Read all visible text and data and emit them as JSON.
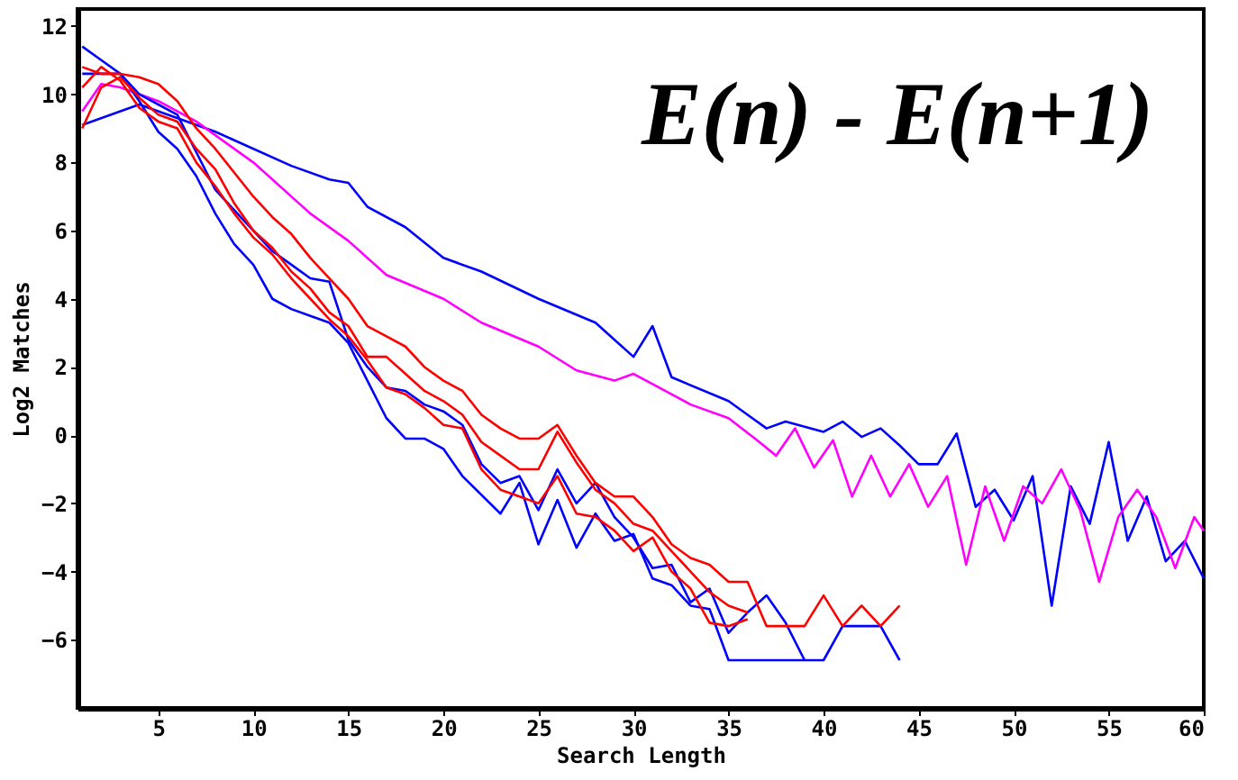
{
  "chart_data": {
    "type": "line",
    "xlabel": "Search Length",
    "ylabel": "Log2 Matches",
    "annotations": [
      "E(n) - E(n+1)"
    ],
    "xlim": [
      0.75,
      60
    ],
    "ylim": [
      -8,
      12.5
    ],
    "xticks": [
      5,
      10,
      15,
      20,
      25,
      30,
      35,
      40,
      45,
      50,
      55,
      60
    ],
    "yticks": [
      -6,
      -4,
      -2,
      0,
      2,
      4,
      6,
      8,
      10,
      12
    ],
    "grid": false,
    "legend": false,
    "marker": "none",
    "line_style": "solid",
    "series": [
      {
        "color": "#0000ff",
        "x": [
          1,
          4,
          8,
          12,
          14,
          15,
          16,
          18,
          20,
          22,
          25,
          28,
          29,
          30,
          31,
          32,
          35,
          36,
          37,
          38,
          40,
          41,
          42,
          43,
          44,
          45,
          46,
          47,
          48,
          49,
          50,
          51,
          52,
          53,
          54,
          55,
          56,
          57,
          58,
          59,
          60
        ],
        "values": [
          9.1,
          9.7,
          8.9,
          7.9,
          7.5,
          7.4,
          6.7,
          6.1,
          5.2,
          4.8,
          4.0,
          3.3,
          2.8,
          2.3,
          3.2,
          1.7,
          1.0,
          0.6,
          0.2,
          0.4,
          0.1,
          0.4,
          -0.05,
          0.2,
          -0.3,
          -0.85,
          -0.85,
          0.05,
          -2.1,
          -1.6,
          -2.5,
          -1.2,
          -5.0,
          -1.5,
          -2.6,
          -0.2,
          -3.1,
          -1.8,
          -3.7,
          -3.1,
          -4.2
        ]
      },
      {
        "color": "#ff00ff",
        "x": [
          1,
          2,
          3,
          5,
          7,
          10,
          13,
          15,
          17,
          20,
          22,
          25,
          27,
          29,
          30,
          31,
          33,
          35,
          36.5,
          37.5,
          38.5,
          39.5,
          40.5,
          41.5,
          42.5,
          43.5,
          44.5,
          45.5,
          46.5,
          47.5,
          48.5,
          49.5,
          50.5,
          51.5,
          52.5,
          53.5,
          54.5,
          55.5,
          56.5,
          57.5,
          58.5,
          59.5,
          60
        ],
        "values": [
          9.5,
          10.3,
          10.2,
          9.8,
          9.2,
          8.0,
          6.5,
          5.7,
          4.7,
          4.0,
          3.3,
          2.6,
          1.9,
          1.6,
          1.8,
          1.5,
          0.9,
          0.5,
          -0.15,
          -0.6,
          0.2,
          -0.95,
          -0.15,
          -1.8,
          -0.6,
          -1.8,
          -0.85,
          -2.1,
          -1.2,
          -3.8,
          -1.5,
          -3.1,
          -1.5,
          -2.0,
          -1.0,
          -2.2,
          -4.3,
          -2.4,
          -1.6,
          -2.4,
          -3.9,
          -2.4,
          -2.8
        ]
      },
      {
        "color": "#0000ff",
        "x": [
          1,
          2,
          3,
          4,
          5,
          6,
          7,
          8,
          9,
          10,
          11,
          12,
          13,
          14,
          15,
          16,
          17,
          18,
          19,
          20,
          21,
          23,
          24,
          25,
          26,
          27,
          28,
          29,
          30,
          31,
          32,
          33,
          34,
          35,
          36,
          37,
          38,
          39,
          40,
          41,
          42,
          43,
          44
        ],
        "values": [
          11.4,
          11.0,
          10.6,
          9.8,
          8.9,
          8.4,
          7.6,
          6.5,
          5.6,
          5.0,
          4.0,
          3.7,
          3.5,
          3.3,
          2.7,
          1.6,
          0.5,
          -0.1,
          -0.1,
          -0.4,
          -1.2,
          -2.3,
          -1.4,
          -3.2,
          -1.9,
          -3.3,
          -2.3,
          -3.1,
          -2.9,
          -4.2,
          -4.4,
          -5.0,
          -5.1,
          -6.6,
          -6.6,
          -6.6,
          -6.6,
          -6.6,
          -6.6,
          -5.6,
          -5.6,
          -5.6,
          -6.6
        ]
      },
      {
        "color": "#0000ff",
        "x": [
          1,
          2,
          3,
          4,
          5,
          6,
          7,
          8,
          9,
          10,
          11,
          12,
          13,
          14,
          15,
          16,
          17,
          18,
          19,
          20,
          21,
          22,
          23,
          24,
          25,
          26,
          27,
          28,
          29,
          30,
          31,
          32,
          33,
          34,
          35,
          36,
          37,
          38,
          39
        ],
        "values": [
          10.6,
          10.6,
          10.6,
          10.0,
          9.7,
          9.4,
          8.3,
          7.2,
          6.6,
          6.0,
          5.4,
          5.0,
          4.6,
          4.5,
          2.8,
          2.0,
          1.4,
          1.3,
          0.9,
          0.7,
          0.3,
          -0.85,
          -1.4,
          -1.2,
          -2.2,
          -1.0,
          -2.0,
          -1.4,
          -2.4,
          -3.0,
          -3.9,
          -3.8,
          -4.9,
          -4.5,
          -5.8,
          -5.2,
          -4.7,
          -5.5,
          -6.6
        ]
      },
      {
        "color": "#ff0000",
        "x": [
          1,
          2,
          3,
          4,
          5,
          6,
          7,
          8,
          9,
          10,
          11,
          12,
          13,
          14,
          15,
          16,
          17,
          18,
          19,
          20,
          21,
          22,
          23,
          24,
          25,
          26,
          27,
          28,
          29,
          30,
          31,
          32,
          33,
          34,
          35,
          36,
          37,
          38,
          39,
          40,
          41,
          42,
          43,
          44
        ],
        "values": [
          10.8,
          10.6,
          10.6,
          10.5,
          10.3,
          9.8,
          9.0,
          8.4,
          7.7,
          7.0,
          6.4,
          5.9,
          5.2,
          4.6,
          4.0,
          3.2,
          2.9,
          2.6,
          2.0,
          1.6,
          1.3,
          0.6,
          0.2,
          -0.1,
          -0.1,
          0.3,
          -0.6,
          -1.4,
          -1.8,
          -1.8,
          -2.4,
          -3.2,
          -3.6,
          -3.8,
          -4.3,
          -4.3,
          -5.6,
          -5.6,
          -5.6,
          -4.7,
          -5.6,
          -5.0,
          -5.6,
          -5.0
        ]
      },
      {
        "color": "#ff0000",
        "x": [
          1,
          2,
          3,
          4,
          5,
          6,
          7,
          8,
          9,
          10,
          11,
          12,
          13,
          14,
          15,
          16,
          17,
          18,
          19,
          20,
          21,
          22,
          23,
          24,
          25,
          26,
          27,
          28,
          29,
          30,
          31,
          32,
          33,
          34,
          35,
          36
        ],
        "values": [
          9.0,
          10.2,
          10.5,
          9.9,
          9.4,
          9.2,
          8.4,
          7.8,
          6.8,
          6.0,
          5.5,
          4.8,
          4.3,
          3.6,
          3.2,
          2.3,
          2.3,
          1.8,
          1.3,
          1.0,
          0.6,
          -0.2,
          -0.6,
          -1.0,
          -1.0,
          0.1,
          -0.8,
          -1.6,
          -2.0,
          -2.6,
          -2.8,
          -3.4,
          -4.0,
          -4.6,
          -5.0,
          -5.2
        ]
      },
      {
        "color": "#ff0000",
        "x": [
          1,
          2,
          3,
          4,
          5,
          6,
          7,
          8,
          9,
          10,
          11,
          12,
          13,
          14,
          15,
          16,
          17,
          18,
          19,
          20,
          21,
          22,
          23,
          24,
          25,
          26,
          27,
          28,
          29,
          30,
          31,
          32,
          33,
          34,
          35,
          36
        ],
        "values": [
          10.2,
          10.8,
          10.4,
          9.6,
          9.2,
          9.0,
          8.0,
          7.3,
          6.5,
          5.8,
          5.3,
          4.6,
          4.0,
          3.4,
          2.9,
          2.2,
          1.4,
          1.2,
          0.8,
          0.3,
          0.2,
          -1.0,
          -1.6,
          -1.8,
          -2.0,
          -1.2,
          -2.3,
          -2.4,
          -2.8,
          -3.4,
          -3.0,
          -4.0,
          -4.5,
          -5.5,
          -5.6,
          -5.4
        ]
      }
    ]
  }
}
